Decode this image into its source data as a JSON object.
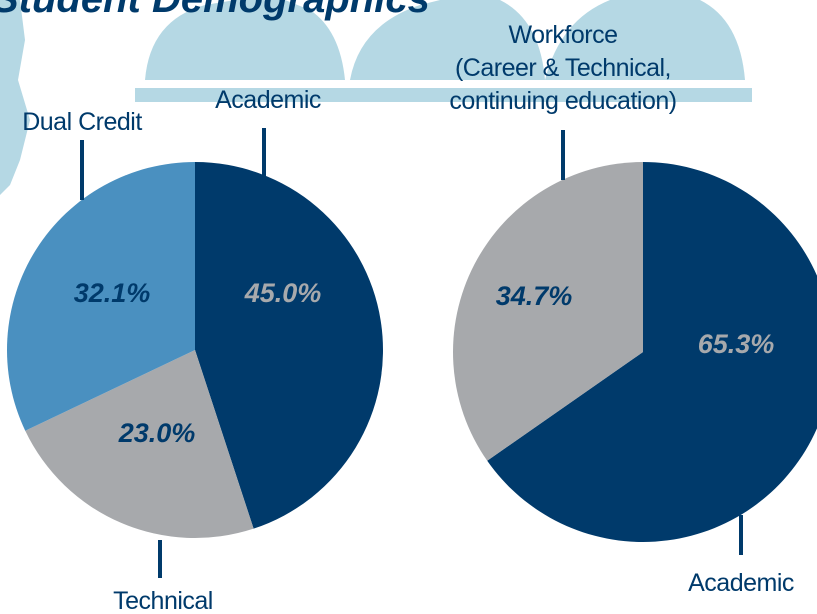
{
  "title": "Student Demographics",
  "chart_data": [
    {
      "type": "pie",
      "categories": [
        "Academic",
        "Technical",
        "Dual Credit"
      ],
      "values": [
        45.0,
        23.0,
        32.1
      ],
      "value_labels": [
        "45.0%",
        "23.0%",
        "32.1%"
      ],
      "colors": [
        "#003a6b",
        "#a7a9ac",
        "#4a90c0"
      ]
    },
    {
      "type": "pie",
      "categories": [
        "Academic",
        "Workforce\n(Career & Technical,\ncontinuing education)"
      ],
      "values": [
        65.3,
        34.7
      ],
      "value_labels": [
        "65.3%",
        "34.7%"
      ],
      "colors": [
        "#003a6b",
        "#a7a9ac"
      ]
    }
  ]
}
